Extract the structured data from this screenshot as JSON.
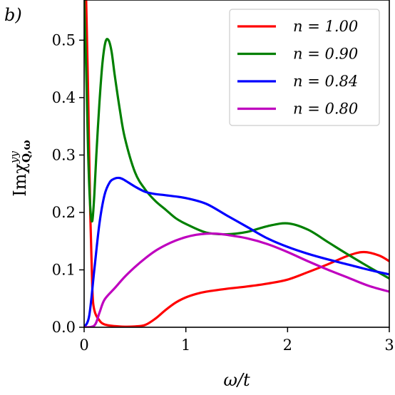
{
  "panel_label": "b)",
  "chart_data": {
    "type": "line",
    "xlabel": "ω/t",
    "ylabel": "Imχyy Q,ω",
    "ylabel_parts": {
      "base": "Imχ",
      "sup": "yy",
      "sub": "Q,ω"
    },
    "xlim": [
      0,
      3
    ],
    "ylim": [
      0,
      0.57
    ],
    "xticks": [
      0,
      1,
      2,
      3
    ],
    "xtick_labels": [
      "0",
      "1",
      "2",
      "3"
    ],
    "yticks": [
      0.0,
      0.1,
      0.2,
      0.3,
      0.4,
      0.5
    ],
    "ytick_labels": [
      "0.0",
      "0.1",
      "0.2",
      "0.3",
      "0.4",
      "0.5"
    ],
    "grid": false,
    "legend_position": "top-right",
    "series": [
      {
        "name": "n = 1.00",
        "color": "#ff0000",
        "x": [
          0.02,
          0.04,
          0.06,
          0.08,
          0.1,
          0.15,
          0.2,
          0.3,
          0.4,
          0.5,
          0.6,
          0.7,
          0.8,
          0.9,
          1.0,
          1.1,
          1.2,
          1.4,
          1.6,
          1.8,
          2.0,
          2.2,
          2.4,
          2.6,
          2.75,
          2.9,
          3.0
        ],
        "y": [
          0.57,
          0.4,
          0.2,
          0.07,
          0.03,
          0.012,
          0.005,
          0.002,
          0.001,
          0.0015,
          0.004,
          0.015,
          0.03,
          0.043,
          0.052,
          0.058,
          0.062,
          0.067,
          0.071,
          0.076,
          0.083,
          0.096,
          0.11,
          0.125,
          0.131,
          0.125,
          0.115
        ]
      },
      {
        "name": "n = 0.90",
        "color": "#008000",
        "x": [
          0.0,
          0.02,
          0.04,
          0.06,
          0.08,
          0.1,
          0.12,
          0.15,
          0.18,
          0.21,
          0.24,
          0.27,
          0.3,
          0.35,
          0.4,
          0.5,
          0.6,
          0.7,
          0.8,
          0.9,
          1.0,
          1.2,
          1.4,
          1.6,
          1.8,
          2.0,
          2.2,
          2.4,
          2.6,
          2.8,
          3.0
        ],
        "y": [
          0.57,
          0.45,
          0.3,
          0.21,
          0.185,
          0.23,
          0.3,
          0.39,
          0.46,
          0.497,
          0.5,
          0.48,
          0.44,
          0.38,
          0.33,
          0.27,
          0.24,
          0.22,
          0.205,
          0.19,
          0.18,
          0.165,
          0.162,
          0.166,
          0.176,
          0.181,
          0.17,
          0.148,
          0.126,
          0.105,
          0.085
        ]
      },
      {
        "name": "n = 0.84",
        "color": "#0000ff",
        "x": [
          0.0,
          0.05,
          0.1,
          0.15,
          0.2,
          0.25,
          0.3,
          0.35,
          0.4,
          0.5,
          0.6,
          0.7,
          0.8,
          1.0,
          1.2,
          1.4,
          1.6,
          1.8,
          2.0,
          2.2,
          2.4,
          2.6,
          2.8,
          3.0
        ],
        "y": [
          0.0,
          0.02,
          0.1,
          0.18,
          0.23,
          0.252,
          0.259,
          0.26,
          0.256,
          0.245,
          0.236,
          0.232,
          0.23,
          0.225,
          0.215,
          0.195,
          0.175,
          0.155,
          0.14,
          0.128,
          0.118,
          0.109,
          0.1,
          0.092
        ]
      },
      {
        "name": "n = 0.80",
        "color": "#bf00bf",
        "x": [
          0.0,
          0.1,
          0.15,
          0.2,
          0.3,
          0.4,
          0.5,
          0.6,
          0.7,
          0.8,
          0.9,
          1.0,
          1.1,
          1.2,
          1.3,
          1.4,
          1.6,
          1.8,
          2.0,
          2.2,
          2.4,
          2.6,
          2.8,
          3.0
        ],
        "y": [
          0.0,
          0.003,
          0.025,
          0.048,
          0.068,
          0.088,
          0.105,
          0.12,
          0.133,
          0.143,
          0.151,
          0.157,
          0.161,
          0.163,
          0.163,
          0.161,
          0.155,
          0.145,
          0.131,
          0.115,
          0.1,
          0.086,
          0.072,
          0.062
        ]
      }
    ]
  }
}
